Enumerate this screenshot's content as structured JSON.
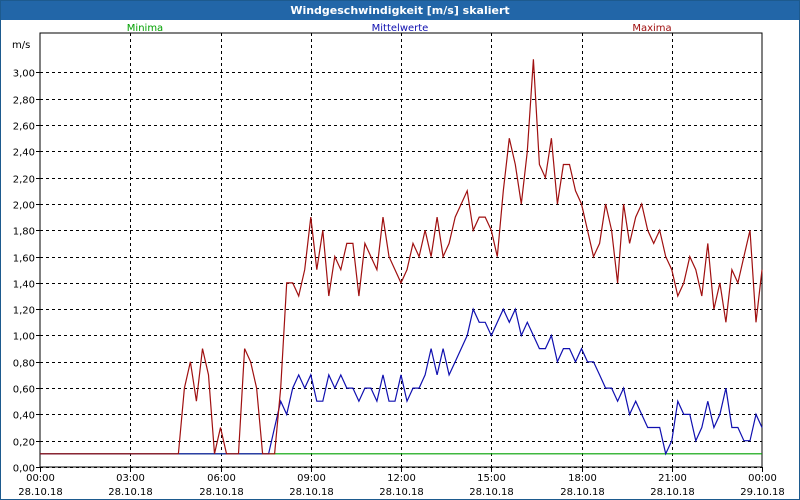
{
  "window": {
    "title": "Windgeschwindigkeit [m/s] skaliert"
  },
  "colors": {
    "minima": "#00a000",
    "mittel": "#1010b0",
    "maxima": "#a01010",
    "title_bg": "#2266a8",
    "grid": "#000000"
  },
  "chart_data": {
    "type": "line",
    "title": "Windgeschwindigkeit [m/s] skaliert",
    "ylabel": "m/s",
    "xlabel": "",
    "ylim": [
      0,
      3.3
    ],
    "xlim": [
      0,
      24
    ],
    "grid": true,
    "legend_placement": "top",
    "y_ticks": [
      "0,00",
      "0,20",
      "0,40",
      "0,60",
      "0,80",
      "1,00",
      "1,20",
      "1,40",
      "1,60",
      "1,80",
      "2,00",
      "2,20",
      "2,40",
      "2,60",
      "2,80",
      "3,00"
    ],
    "x_ticks": [
      {
        "time": "00:00",
        "date": "28.10.18"
      },
      {
        "time": "03:00",
        "date": "28.10.18"
      },
      {
        "time": "06:00",
        "date": "28.10.18"
      },
      {
        "time": "09:00",
        "date": "28.10.18"
      },
      {
        "time": "12:00",
        "date": "28.10.18"
      },
      {
        "time": "15:00",
        "date": "28.10.18"
      },
      {
        "time": "18:00",
        "date": "28.10.18"
      },
      {
        "time": "21:00",
        "date": "28.10.18"
      },
      {
        "time": "00:00",
        "date": "29.10.18"
      }
    ],
    "series": [
      {
        "name": "Minima",
        "x": [
          0,
          24
        ],
        "values": [
          0.1,
          0.1
        ]
      },
      {
        "name": "Mittelwerte",
        "x": [
          0,
          7.6,
          7.8,
          8.0,
          8.2,
          8.4,
          8.6,
          8.8,
          9.0,
          9.2,
          9.4,
          9.6,
          9.8,
          10.0,
          10.2,
          10.4,
          10.6,
          10.8,
          11.0,
          11.2,
          11.4,
          11.6,
          11.8,
          12.0,
          12.2,
          12.4,
          12.6,
          12.8,
          13.0,
          13.2,
          13.4,
          13.6,
          13.8,
          14.0,
          14.2,
          14.4,
          14.6,
          14.8,
          15.0,
          15.2,
          15.4,
          15.6,
          15.8,
          16.0,
          16.2,
          16.4,
          16.6,
          16.8,
          17.0,
          17.2,
          17.4,
          17.6,
          17.8,
          18.0,
          18.2,
          18.4,
          18.6,
          18.8,
          19.0,
          19.2,
          19.4,
          19.6,
          19.8,
          20.0,
          20.2,
          20.4,
          20.6,
          20.8,
          21.0,
          21.2,
          21.4,
          21.6,
          21.8,
          22.0,
          22.2,
          22.4,
          22.6,
          22.8,
          23.0,
          23.2,
          23.4,
          23.6,
          23.8,
          24.0
        ],
        "values": [
          0.1,
          0.1,
          0.3,
          0.5,
          0.4,
          0.6,
          0.7,
          0.6,
          0.7,
          0.5,
          0.5,
          0.7,
          0.6,
          0.7,
          0.6,
          0.6,
          0.5,
          0.6,
          0.6,
          0.5,
          0.7,
          0.5,
          0.5,
          0.7,
          0.5,
          0.6,
          0.6,
          0.7,
          0.9,
          0.7,
          0.9,
          0.7,
          0.8,
          0.9,
          1.0,
          1.2,
          1.1,
          1.1,
          1.0,
          1.1,
          1.2,
          1.1,
          1.2,
          1.0,
          1.1,
          1.0,
          0.9,
          0.9,
          1.0,
          0.8,
          0.9,
          0.9,
          0.8,
          0.9,
          0.8,
          0.8,
          0.7,
          0.6,
          0.6,
          0.5,
          0.6,
          0.4,
          0.5,
          0.4,
          0.3,
          0.3,
          0.3,
          0.1,
          0.2,
          0.5,
          0.4,
          0.4,
          0.2,
          0.3,
          0.5,
          0.3,
          0.4,
          0.6,
          0.3,
          0.3,
          0.2,
          0.2,
          0.4,
          0.3
        ],
        "note_x_unit": "hours"
      },
      {
        "name": "Maxima",
        "x": [
          0,
          4.6,
          4.8,
          5.0,
          5.2,
          5.4,
          5.6,
          5.8,
          6.0,
          6.2,
          6.4,
          6.6,
          6.8,
          7.0,
          7.2,
          7.4,
          7.6,
          7.8,
          8.0,
          8.2,
          8.4,
          8.6,
          8.8,
          9.0,
          9.2,
          9.4,
          9.6,
          9.8,
          10.0,
          10.2,
          10.4,
          10.6,
          10.8,
          11.0,
          11.2,
          11.4,
          11.6,
          11.8,
          12.0,
          12.2,
          12.4,
          12.6,
          12.8,
          13.0,
          13.2,
          13.4,
          13.6,
          13.8,
          14.0,
          14.2,
          14.4,
          14.6,
          14.8,
          15.0,
          15.2,
          15.4,
          15.6,
          15.8,
          16.0,
          16.2,
          16.4,
          16.6,
          16.8,
          17.0,
          17.2,
          17.4,
          17.6,
          17.8,
          18.0,
          18.2,
          18.4,
          18.6,
          18.8,
          19.0,
          19.2,
          19.4,
          19.6,
          19.8,
          20.0,
          20.2,
          20.4,
          20.6,
          20.8,
          21.0,
          21.2,
          21.4,
          21.6,
          21.8,
          22.0,
          22.2,
          22.4,
          22.6,
          22.8,
          23.0,
          23.2,
          23.4,
          23.6,
          23.8,
          24.0
        ],
        "values": [
          0.1,
          0.1,
          0.6,
          0.8,
          0.5,
          0.9,
          0.7,
          0.1,
          0.3,
          0.1,
          0.1,
          0.1,
          0.9,
          0.8,
          0.6,
          0.1,
          0.1,
          0.1,
          0.6,
          1.4,
          1.4,
          1.3,
          1.5,
          1.9,
          1.5,
          1.8,
          1.3,
          1.6,
          1.5,
          1.7,
          1.7,
          1.3,
          1.7,
          1.6,
          1.5,
          1.9,
          1.6,
          1.5,
          1.4,
          1.5,
          1.7,
          1.6,
          1.8,
          1.6,
          1.9,
          1.6,
          1.7,
          1.9,
          2.0,
          2.1,
          1.8,
          1.9,
          1.9,
          1.8,
          1.6,
          2.1,
          2.5,
          2.3,
          2.0,
          2.4,
          3.1,
          2.3,
          2.2,
          2.5,
          2.0,
          2.3,
          2.3,
          2.1,
          2.0,
          1.8,
          1.6,
          1.7,
          2.0,
          1.8,
          1.4,
          2.0,
          1.7,
          1.9,
          2.0,
          1.8,
          1.7,
          1.8,
          1.6,
          1.5,
          1.3,
          1.4,
          1.6,
          1.5,
          1.3,
          1.7,
          1.2,
          1.4,
          1.1,
          1.5,
          1.4,
          1.6,
          1.8,
          1.1,
          1.5
        ],
        "note_x_unit": "hours"
      }
    ]
  }
}
